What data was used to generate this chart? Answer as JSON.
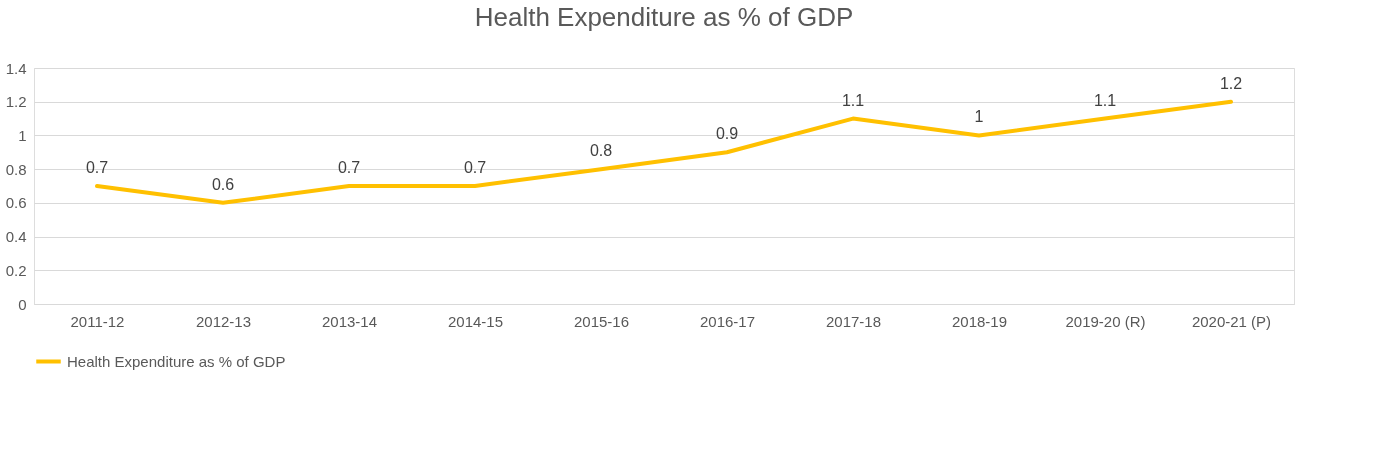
{
  "chart_data": {
    "type": "line",
    "title": "Health Expenditure as % of GDP",
    "categories": [
      "2011-12",
      "2012-13",
      "2013-14",
      "2014-15",
      "2015-16",
      "2016-17",
      "2017-18",
      "2018-19",
      "2019-20 (R)",
      "2020-21 (P)"
    ],
    "series": [
      {
        "name": "Health Expenditure as % of GDP",
        "color": "#ffc000",
        "values": [
          0.7,
          0.6,
          0.7,
          0.7,
          0.8,
          0.9,
          1.1,
          1,
          1.1,
          1.2
        ]
      }
    ],
    "ylim": [
      0,
      1.4
    ],
    "yticks": [
      0,
      0.2,
      0.4,
      0.6,
      0.8,
      1,
      1.2,
      1.4
    ],
    "grid": "y",
    "legend": "bottom",
    "data_labels": true,
    "marker": "none",
    "line_style": "solid"
  }
}
